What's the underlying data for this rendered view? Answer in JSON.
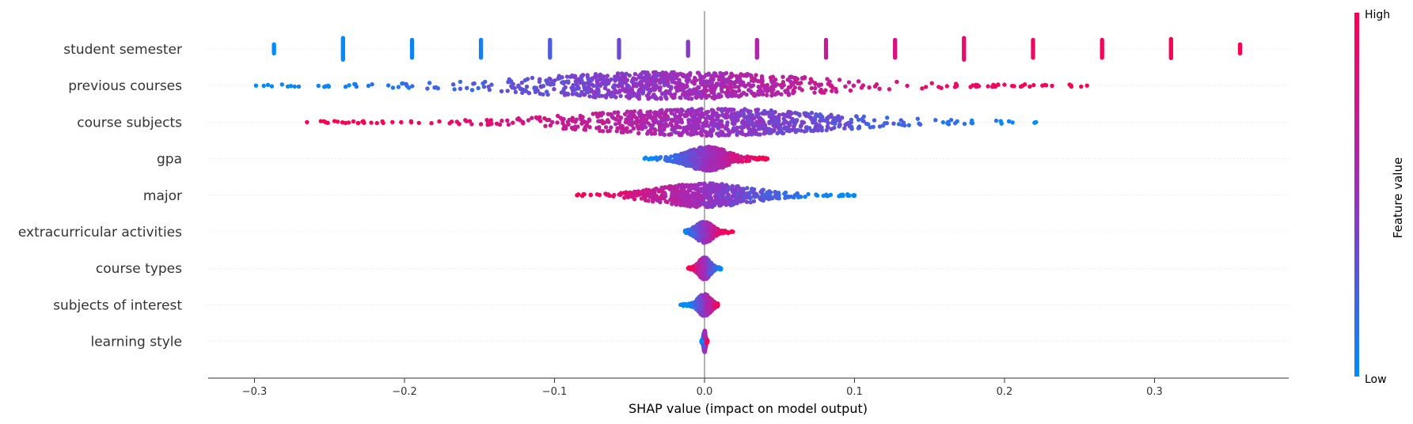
{
  "chart_data": {
    "type": "scatter",
    "subtype": "shap-beeswarm",
    "title": "",
    "xlabel": "SHAP value (impact on model output)",
    "xlim": [
      -0.33,
      0.39
    ],
    "xticks": [
      {
        "value": -0.3,
        "label": "−0.3"
      },
      {
        "value": -0.2,
        "label": "−0.2"
      },
      {
        "value": -0.1,
        "label": "−0.1"
      },
      {
        "value": 0.0,
        "label": "0.0"
      },
      {
        "value": 0.1,
        "label": "0.1"
      },
      {
        "value": 0.2,
        "label": "0.2"
      },
      {
        "value": 0.3,
        "label": "0.3"
      }
    ],
    "colorbar": {
      "label": "Feature value",
      "high": "High",
      "low": "Low",
      "low_color": "#008bfb",
      "high_color": "#ff0051"
    },
    "features": [
      {
        "name": "student semester",
        "kind": "discrete",
        "values": [
          -0.287,
          -0.241,
          -0.195,
          -0.149,
          -0.103,
          -0.057,
          -0.011,
          0.035,
          0.081,
          0.127,
          0.173,
          0.219,
          0.265,
          0.311,
          0.357
        ],
        "colors": [
          0.0,
          0.0,
          0.05,
          0.05,
          0.25,
          0.35,
          0.45,
          0.6,
          0.7,
          0.8,
          0.88,
          0.92,
          0.95,
          0.98,
          1.0
        ],
        "heights": [
          0.25,
          0.6,
          0.5,
          0.5,
          0.5,
          0.5,
          0.4,
          0.5,
          0.5,
          0.5,
          0.6,
          0.5,
          0.5,
          0.55,
          0.25
        ]
      },
      {
        "name": "previous courses",
        "kind": "spread",
        "min": -0.299,
        "max": 0.255,
        "center": -0.023,
        "color_direction": 1,
        "density": "wide"
      },
      {
        "name": "course subjects",
        "kind": "spread",
        "min": -0.265,
        "max": 0.221,
        "center": 0.003,
        "color_direction": -1,
        "density": "wide"
      },
      {
        "name": "gpa",
        "kind": "spread",
        "min": -0.04,
        "max": 0.042,
        "center": 0.002,
        "color_direction": 1,
        "density": "medium"
      },
      {
        "name": "major",
        "kind": "spread",
        "min": -0.085,
        "max": 0.1,
        "center": 0.0,
        "color_direction": -1,
        "density": "medium"
      },
      {
        "name": "extracurricular activities",
        "kind": "spread",
        "min": -0.013,
        "max": 0.019,
        "center": 0.0,
        "color_direction": 1,
        "density": "narrow"
      },
      {
        "name": "course types",
        "kind": "spread",
        "min": -0.011,
        "max": 0.011,
        "center": 0.0,
        "color_direction": -1,
        "density": "narrow"
      },
      {
        "name": "subjects of interest",
        "kind": "spread",
        "min": -0.016,
        "max": 0.009,
        "center": 0.0,
        "color_direction": 1,
        "density": "narrow"
      },
      {
        "name": "learning style",
        "kind": "spread",
        "min": -0.002,
        "max": 0.002,
        "center": 0.0,
        "color_direction": 1,
        "density": "tiny"
      }
    ]
  }
}
